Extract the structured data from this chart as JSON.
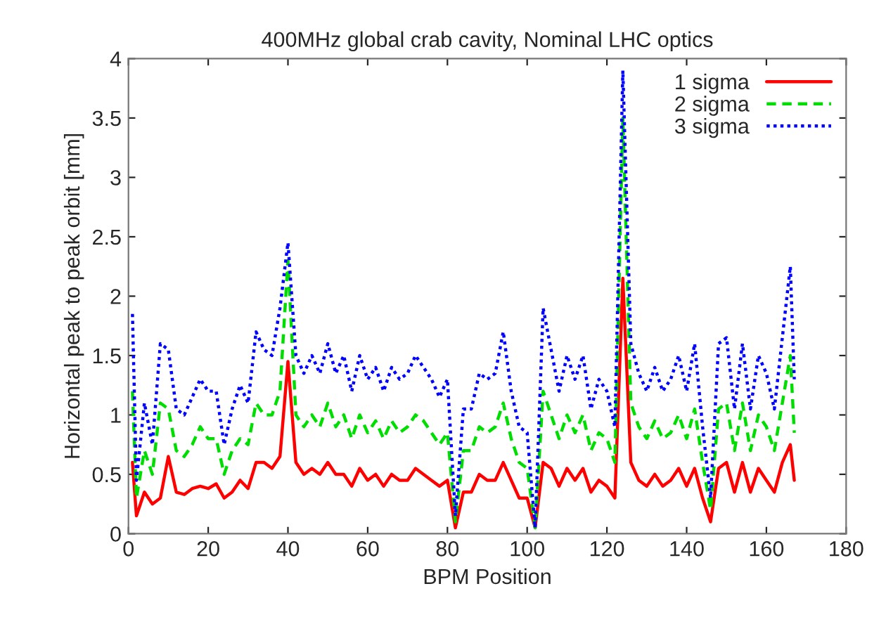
{
  "chart_data": {
    "type": "line",
    "title": "400MHz global crab cavity, Nominal LHC optics",
    "xlabel": "BPM Position",
    "ylabel": "Horizontal peak to peak orbit [mm]",
    "x": [
      1,
      2,
      4,
      6,
      8,
      10,
      12,
      14,
      16,
      18,
      20,
      22,
      24,
      26,
      28,
      30,
      32,
      34,
      36,
      38,
      40,
      42,
      44,
      46,
      48,
      50,
      52,
      54,
      56,
      58,
      60,
      62,
      64,
      66,
      68,
      70,
      72,
      74,
      76,
      78,
      80,
      82,
      84,
      86,
      88,
      90,
      92,
      94,
      96,
      98,
      100,
      102,
      104,
      106,
      108,
      110,
      112,
      114,
      116,
      118,
      120,
      122,
      124,
      126,
      128,
      130,
      132,
      134,
      136,
      138,
      140,
      142,
      144,
      146,
      148,
      150,
      152,
      154,
      156,
      158,
      160,
      162,
      164,
      166,
      167
    ],
    "series": [
      {
        "name": "1 sigma",
        "color": "#ff0000",
        "line_style": "solid",
        "values": [
          0.6,
          0.15,
          0.35,
          0.25,
          0.3,
          0.65,
          0.35,
          0.33,
          0.38,
          0.4,
          0.38,
          0.42,
          0.3,
          0.35,
          0.45,
          0.38,
          0.6,
          0.6,
          0.55,
          0.65,
          1.45,
          0.6,
          0.5,
          0.55,
          0.5,
          0.6,
          0.5,
          0.5,
          0.4,
          0.55,
          0.45,
          0.5,
          0.4,
          0.5,
          0.45,
          0.45,
          0.55,
          0.5,
          0.45,
          0.4,
          0.45,
          0.05,
          0.35,
          0.35,
          0.5,
          0.45,
          0.45,
          0.6,
          0.45,
          0.3,
          0.3,
          0.05,
          0.6,
          0.55,
          0.4,
          0.55,
          0.45,
          0.55,
          0.35,
          0.45,
          0.4,
          0.3,
          2.15,
          0.6,
          0.45,
          0.4,
          0.5,
          0.4,
          0.45,
          0.55,
          0.4,
          0.55,
          0.3,
          0.1,
          0.55,
          0.6,
          0.35,
          0.6,
          0.35,
          0.55,
          0.45,
          0.35,
          0.6,
          0.75,
          0.45
        ]
      },
      {
        "name": "2 sigma",
        "color": "#00dd00",
        "line_style": "dashed",
        "values": [
          1.2,
          0.3,
          0.7,
          0.5,
          1.1,
          1.05,
          0.7,
          0.65,
          0.75,
          0.9,
          0.8,
          0.8,
          0.5,
          0.7,
          0.8,
          0.75,
          1.1,
          1.0,
          1.0,
          1.2,
          2.3,
          1.0,
          0.9,
          1.0,
          0.9,
          1.1,
          0.9,
          1.0,
          0.8,
          1.0,
          0.85,
          0.95,
          0.8,
          0.95,
          0.85,
          0.9,
          1.0,
          0.95,
          0.85,
          0.75,
          0.85,
          0.1,
          0.7,
          0.7,
          0.9,
          0.85,
          0.9,
          1.1,
          0.8,
          0.6,
          0.55,
          0.05,
          1.2,
          1.0,
          0.8,
          1.0,
          0.85,
          1.0,
          0.7,
          0.85,
          0.8,
          0.6,
          3.5,
          1.1,
          0.9,
          0.8,
          0.95,
          0.8,
          0.85,
          1.0,
          0.8,
          1.05,
          0.6,
          0.2,
          1.05,
          1.1,
          0.7,
          1.1,
          0.7,
          1.0,
          0.9,
          0.7,
          1.1,
          1.5,
          0.85
        ]
      },
      {
        "name": "3 sigma",
        "color": "#0000ff",
        "line_style": "dotted",
        "values": [
          1.85,
          0.45,
          1.1,
          0.75,
          1.6,
          1.55,
          1.05,
          1.0,
          1.15,
          1.3,
          1.2,
          1.2,
          0.75,
          1.05,
          1.25,
          1.1,
          1.7,
          1.55,
          1.5,
          1.9,
          2.45,
          1.5,
          1.35,
          1.5,
          1.35,
          1.6,
          1.35,
          1.5,
          1.2,
          1.5,
          1.3,
          1.4,
          1.2,
          1.4,
          1.3,
          1.35,
          1.5,
          1.4,
          1.3,
          1.15,
          1.3,
          0.15,
          1.05,
          1.05,
          1.35,
          1.3,
          1.35,
          1.7,
          1.2,
          0.9,
          0.85,
          0.05,
          1.9,
          1.55,
          1.2,
          1.5,
          1.3,
          1.5,
          1.05,
          1.3,
          1.2,
          0.9,
          3.9,
          1.6,
          1.35,
          1.2,
          1.4,
          1.2,
          1.3,
          1.5,
          1.2,
          1.6,
          0.9,
          0.3,
          1.6,
          1.65,
          1.05,
          1.6,
          1.05,
          1.5,
          1.35,
          1.05,
          1.65,
          2.25,
          1.3
        ]
      }
    ],
    "xlim": [
      0,
      180
    ],
    "xticks": [
      0,
      20,
      40,
      60,
      80,
      100,
      120,
      140,
      160,
      180
    ],
    "ylim": [
      0,
      4
    ],
    "yticks": [
      0,
      0.5,
      1,
      1.5,
      2,
      2.5,
      3,
      3.5,
      4
    ],
    "legend": "top right",
    "grid": false
  }
}
